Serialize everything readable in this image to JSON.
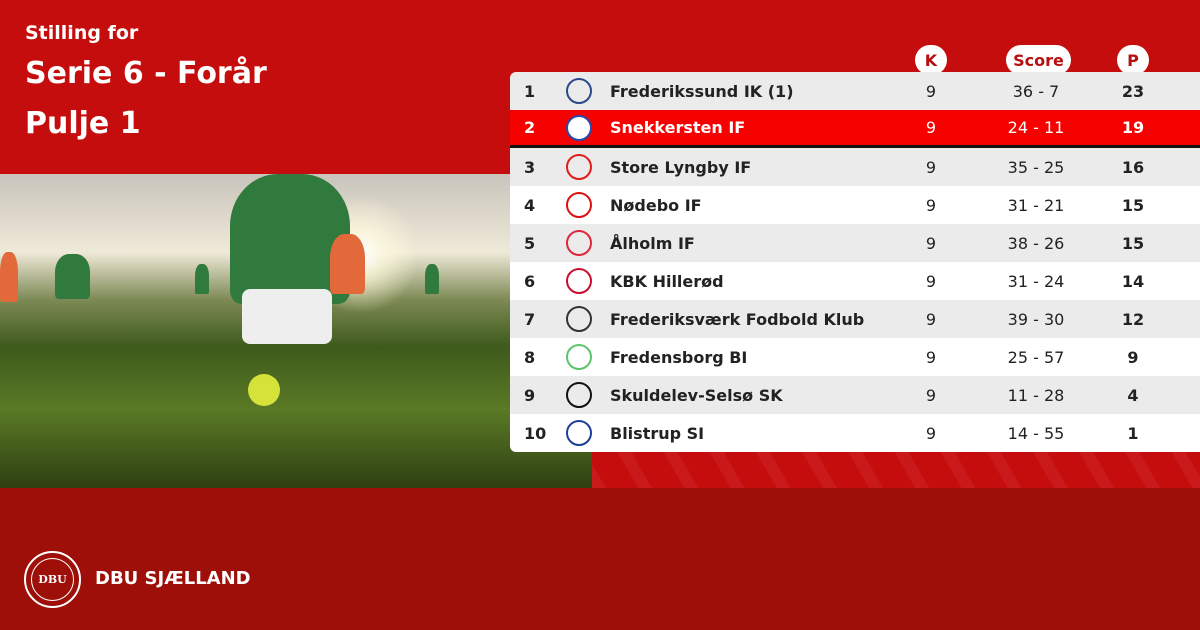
{
  "header": {
    "subtitle": "Stilling for",
    "title": "Serie 6 - Forår",
    "pool": "Pulje 1"
  },
  "columns": {
    "k": "K",
    "score": "Score",
    "p": "P"
  },
  "colors": {
    "background": "#c60d0e",
    "footer": "#9d0f08",
    "highlight": "#f70000"
  },
  "rows": [
    {
      "rank": "1",
      "team": "Frederikssund IK (1)",
      "k": "9",
      "score": "36 - 7",
      "p": "23",
      "logo": "FIK",
      "logo_color": "#2a4a8a"
    },
    {
      "rank": "2",
      "team": "Snekkersten IF",
      "k": "9",
      "score": "24 - 11",
      "p": "19",
      "logo": "SIF",
      "logo_color": "#2b49a8",
      "highlighted": true
    },
    {
      "rank": "3",
      "team": "Store Lyngby IF",
      "k": "9",
      "score": "35 - 25",
      "p": "16",
      "logo": "SL",
      "logo_color": "#e31b1b"
    },
    {
      "rank": "4",
      "team": "Nødebo IF",
      "k": "9",
      "score": "31 - 21",
      "p": "15",
      "logo": "N",
      "logo_color": "#d11"
    },
    {
      "rank": "5",
      "team": "Ålholm IF",
      "k": "9",
      "score": "38 - 26",
      "p": "15",
      "logo": "ÅIF",
      "logo_color": "#e0263a"
    },
    {
      "rank": "6",
      "team": "KBK Hillerød",
      "k": "9",
      "score": "31 - 24",
      "p": "14",
      "logo": "KBK",
      "logo_color": "#c8102e"
    },
    {
      "rank": "7",
      "team": "Frederiksværk Fodbold Klub",
      "k": "9",
      "score": "39 - 30",
      "p": "12",
      "logo": "FFK",
      "logo_color": "#333"
    },
    {
      "rank": "8",
      "team": "Fredensborg BI",
      "k": "9",
      "score": "25 - 57",
      "p": "9",
      "logo": "B",
      "logo_color": "#5ec46a"
    },
    {
      "rank": "9",
      "team": "Skuldelev-Selsø SK",
      "k": "9",
      "score": "11 - 28",
      "p": "4",
      "logo": "SSSK",
      "logo_color": "#111"
    },
    {
      "rank": "10",
      "team": "Blistrup SI",
      "k": "9",
      "score": "14 - 55",
      "p": "1",
      "logo": "BSI",
      "logo_color": "#1b3f9b"
    }
  ],
  "footer": {
    "brand": "DBU SJÆLLAND",
    "seal_text": "DBU"
  }
}
